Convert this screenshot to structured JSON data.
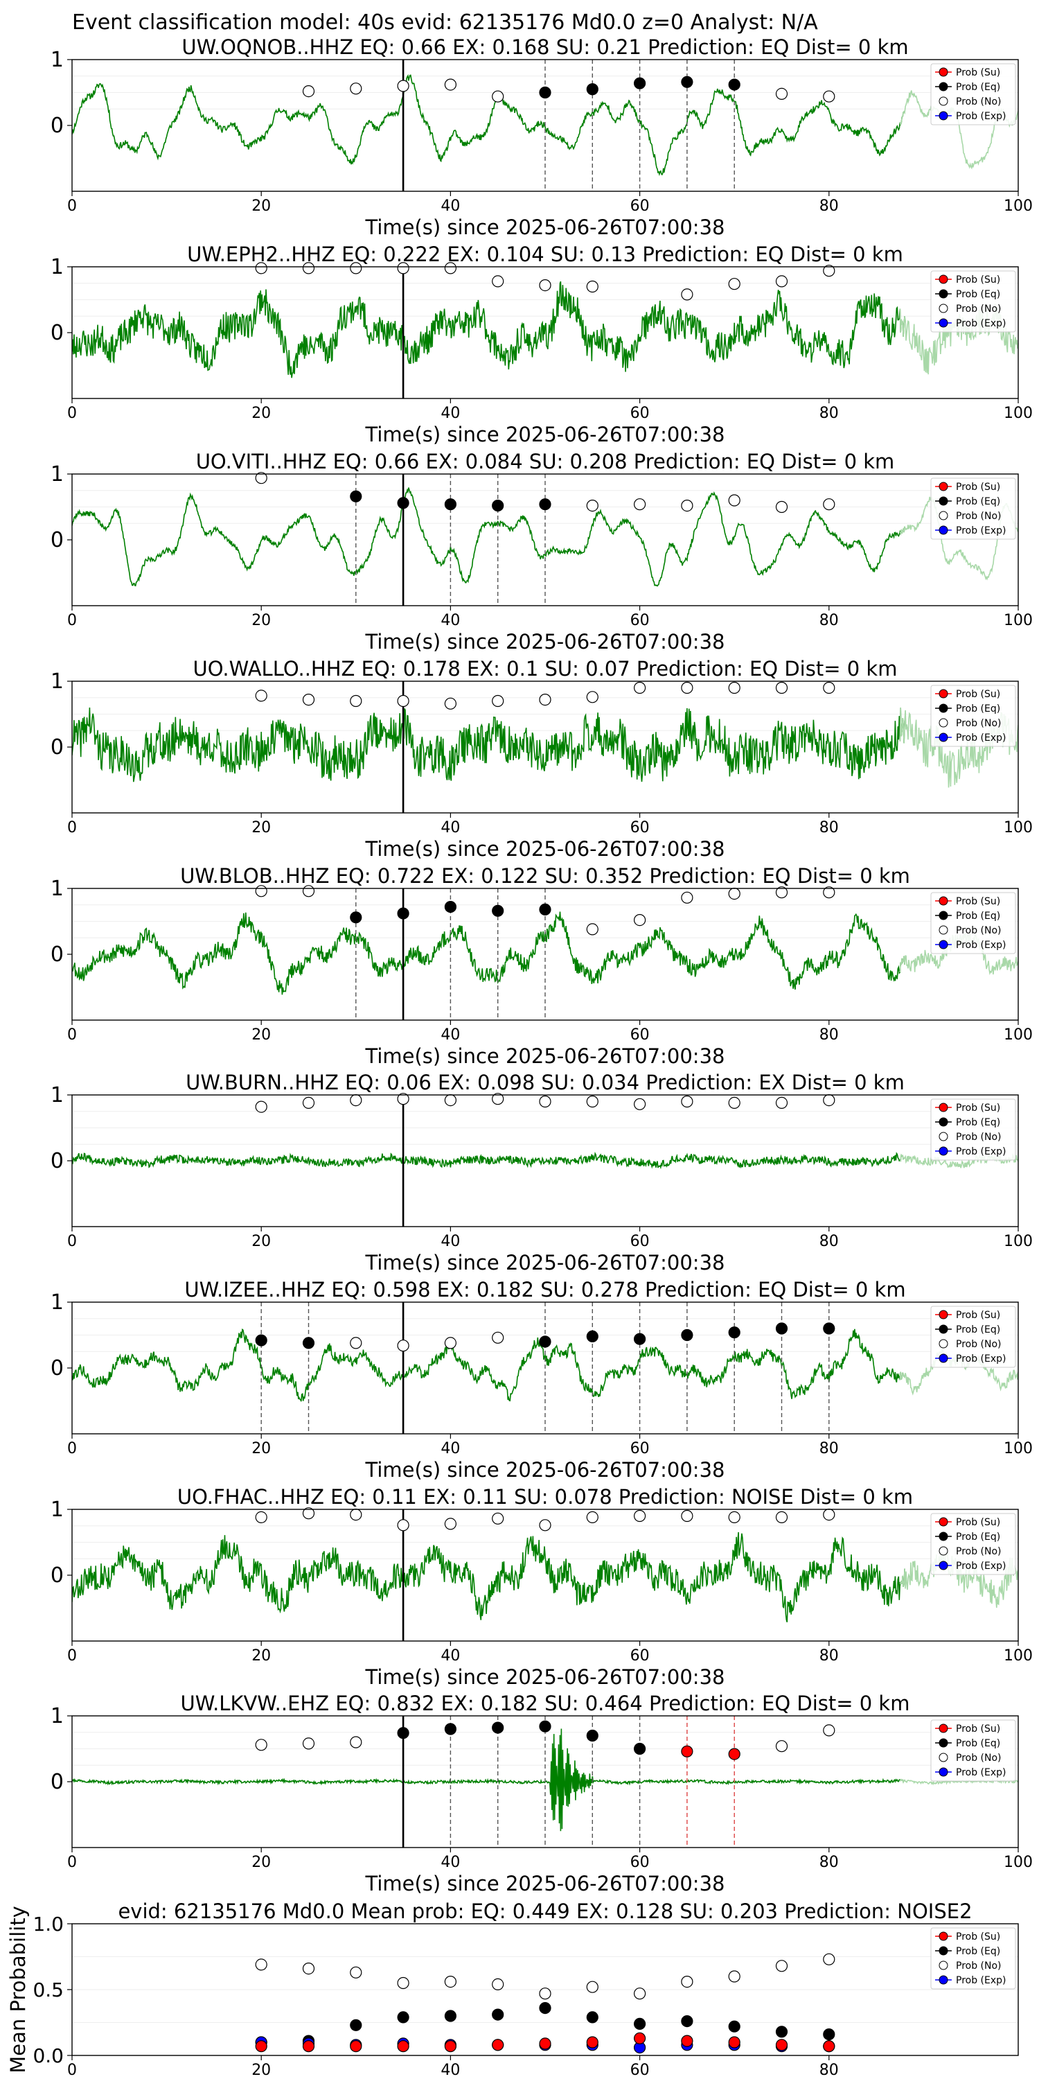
{
  "figure_title": "Event classification model: 40s evid: 62135176 Md0.0 z=0 Analyst: N/A",
  "colors": {
    "trace": "#008000",
    "trace_faded": "#a8d8a8",
    "su": "#ff0000",
    "eq": "#000000",
    "no": "#ffffff",
    "exp": "#0000ff",
    "pick_black": "#555555",
    "pick_red": "#dd4444"
  },
  "legend_labels": [
    "Prob (Su)",
    "Prob (Eq)",
    "Prob (No)",
    "Prob (Exp)"
  ],
  "chart_data": [
    {
      "type": "line",
      "title": "UW.OQNOB..HHZ   EQ: 0.66  EX: 0.168  SU: 0.21   Prediction: EQ    Dist= 0 km",
      "xlabel": "Time(s) since 2025-06-26T07:00:38",
      "xlim": [
        0,
        100
      ],
      "ylim": [
        -1,
        1
      ],
      "x_ticks": [
        0,
        20,
        40,
        60,
        80,
        100
      ],
      "y_ticks": [
        0,
        1
      ],
      "origin_line": 35,
      "pick_lines": [
        50,
        55,
        60,
        65,
        70
      ],
      "pick_color": "black",
      "trace": {
        "amp": 0.55,
        "noise": 0.05,
        "seed": 11,
        "emergent": false
      },
      "prob_no": {
        "x": [
          25,
          30,
          35,
          40,
          45,
          75,
          80
        ],
        "y": [
          0.52,
          0.56,
          0.6,
          0.62,
          0.44,
          0.48,
          0.44
        ]
      },
      "prob_eq": {
        "x": [
          50,
          55,
          60,
          65,
          70
        ],
        "y": [
          0.5,
          0.55,
          0.64,
          0.66,
          0.62
        ]
      },
      "prob_su": {
        "x": [],
        "y": []
      }
    },
    {
      "type": "line",
      "title": "UW.EPH2..HHZ   EQ: 0.222  EX: 0.104  SU: 0.13   Prediction: EQ    Dist= 0 km",
      "xlabel": "Time(s) since 2025-06-26T07:00:38",
      "xlim": [
        0,
        100
      ],
      "ylim": [
        -1,
        1
      ],
      "x_ticks": [
        0,
        20,
        40,
        60,
        80,
        100
      ],
      "y_ticks": [
        0,
        1
      ],
      "origin_line": 35,
      "pick_lines": [],
      "pick_color": "black",
      "trace": {
        "amp": 0.45,
        "noise": 0.22,
        "seed": 23,
        "emergent": false
      },
      "prob_no": {
        "x": [
          20,
          25,
          30,
          35,
          40,
          45,
          50,
          55,
          65,
          70,
          75,
          80
        ],
        "y": [
          0.98,
          0.98,
          0.98,
          0.98,
          0.98,
          0.78,
          0.72,
          0.7,
          0.58,
          0.74,
          0.78,
          0.94
        ]
      },
      "prob_eq": {
        "x": [],
        "y": []
      },
      "prob_su": {
        "x": [],
        "y": []
      }
    },
    {
      "type": "line",
      "title": "UO.VITI..HHZ   EQ: 0.66  EX: 0.084  SU: 0.208   Prediction: EQ    Dist= 0 km",
      "xlabel": "Time(s) since 2025-06-26T07:00:38",
      "xlim": [
        0,
        100
      ],
      "ylim": [
        -1,
        1
      ],
      "x_ticks": [
        0,
        20,
        40,
        60,
        80,
        100
      ],
      "y_ticks": [
        0,
        1
      ],
      "origin_line": 35,
      "pick_lines": [
        30,
        40,
        45,
        50
      ],
      "pick_color": "black",
      "trace": {
        "amp": 0.6,
        "noise": 0.04,
        "seed": 37,
        "emergent": false
      },
      "prob_no": {
        "x": [
          20,
          55,
          60,
          65,
          70,
          75,
          80
        ],
        "y": [
          0.94,
          0.52,
          0.54,
          0.52,
          0.6,
          0.5,
          0.54
        ]
      },
      "prob_eq": {
        "x": [
          30,
          35,
          40,
          45,
          50
        ],
        "y": [
          0.66,
          0.56,
          0.54,
          0.52,
          0.54
        ]
      },
      "prob_su": {
        "x": [],
        "y": []
      }
    },
    {
      "type": "line",
      "title": "UO.WALLO..HHZ   EQ: 0.178  EX: 0.1  SU: 0.07   Prediction: EQ    Dist= 0 km",
      "xlabel": "Time(s) since 2025-06-26T07:00:38",
      "xlim": [
        0,
        100
      ],
      "ylim": [
        -1,
        1
      ],
      "x_ticks": [
        0,
        20,
        40,
        60,
        80,
        100
      ],
      "y_ticks": [
        0,
        1
      ],
      "origin_line": 35,
      "pick_lines": [],
      "pick_color": "black",
      "trace": {
        "amp": 0.3,
        "noise": 0.3,
        "seed": 41,
        "emergent": false
      },
      "prob_no": {
        "x": [
          20,
          25,
          30,
          35,
          40,
          45,
          50,
          55,
          60,
          65,
          70,
          75,
          80
        ],
        "y": [
          0.78,
          0.72,
          0.7,
          0.7,
          0.66,
          0.7,
          0.72,
          0.76,
          0.9,
          0.9,
          0.9,
          0.9,
          0.9
        ]
      },
      "prob_eq": {
        "x": [],
        "y": []
      },
      "prob_su": {
        "x": [],
        "y": []
      }
    },
    {
      "type": "line",
      "title": "UW.BLOB..HHZ   EQ: 0.722  EX: 0.122  SU: 0.352   Prediction: EQ    Dist= 0 km",
      "xlabel": "Time(s) since 2025-06-26T07:00:38",
      "xlim": [
        0,
        100
      ],
      "ylim": [
        -1,
        1
      ],
      "x_ticks": [
        0,
        20,
        40,
        60,
        80,
        100
      ],
      "y_ticks": [
        0,
        1
      ],
      "origin_line": 35,
      "pick_lines": [
        30,
        40,
        45,
        50
      ],
      "pick_color": "black",
      "trace": {
        "amp": 0.45,
        "noise": 0.12,
        "seed": 53,
        "emergent": false
      },
      "prob_no": {
        "x": [
          20,
          25,
          55,
          60,
          65,
          70,
          75,
          80
        ],
        "y": [
          0.96,
          0.96,
          0.38,
          0.52,
          0.86,
          0.92,
          0.94,
          0.94
        ]
      },
      "prob_eq": {
        "x": [
          30,
          35,
          40,
          45,
          50
        ],
        "y": [
          0.56,
          0.62,
          0.72,
          0.66,
          0.68
        ]
      },
      "prob_su": {
        "x": [],
        "y": []
      }
    },
    {
      "type": "line",
      "title": "UW.BURN..HHZ   EQ: 0.06  EX: 0.098  SU: 0.034   Prediction: EX    Dist= 0 km",
      "xlabel": "Time(s) since 2025-06-26T07:00:38",
      "xlim": [
        0,
        100
      ],
      "ylim": [
        -1,
        1
      ],
      "x_ticks": [
        0,
        20,
        40,
        60,
        80,
        100
      ],
      "y_ticks": [
        0,
        1
      ],
      "origin_line": 35,
      "pick_lines": [],
      "pick_color": "black",
      "trace": {
        "amp": 0.05,
        "noise": 0.06,
        "seed": 67,
        "emergent": false
      },
      "prob_no": {
        "x": [
          20,
          25,
          30,
          35,
          40,
          45,
          50,
          55,
          60,
          65,
          70,
          75,
          80
        ],
        "y": [
          0.82,
          0.88,
          0.92,
          0.94,
          0.92,
          0.94,
          0.9,
          0.9,
          0.86,
          0.9,
          0.88,
          0.88,
          0.92
        ]
      },
      "prob_eq": {
        "x": [],
        "y": []
      },
      "prob_su": {
        "x": [],
        "y": []
      }
    },
    {
      "type": "line",
      "title": "UW.IZEE..HHZ   EQ: 0.598  EX: 0.182  SU: 0.278   Prediction: EQ    Dist= 0 km",
      "xlabel": "Time(s) since 2025-06-26T07:00:38",
      "xlim": [
        0,
        100
      ],
      "ylim": [
        -1,
        1
      ],
      "x_ticks": [
        0,
        20,
        40,
        60,
        80,
        100
      ],
      "y_ticks": [
        0,
        1
      ],
      "origin_line": 35,
      "pick_lines": [
        20,
        25,
        50,
        55,
        60,
        65,
        70,
        75,
        80
      ],
      "pick_color": "black",
      "trace": {
        "amp": 0.4,
        "noise": 0.08,
        "seed": 79,
        "emergent": false
      },
      "prob_no": {
        "x": [
          30,
          35,
          40,
          45
        ],
        "y": [
          0.38,
          0.34,
          0.38,
          0.46
        ]
      },
      "prob_eq": {
        "x": [
          20,
          25,
          50,
          55,
          60,
          65,
          70,
          75,
          80
        ],
        "y": [
          0.42,
          0.38,
          0.4,
          0.48,
          0.44,
          0.5,
          0.54,
          0.6,
          0.6
        ]
      },
      "prob_su": {
        "x": [],
        "y": []
      }
    },
    {
      "type": "line",
      "title": "UO.FHAC..HHZ   EQ: 0.11  EX: 0.11  SU: 0.078   Prediction: NOISE    Dist= 0 km",
      "xlabel": "Time(s) since 2025-06-26T07:00:38",
      "xlim": [
        0,
        100
      ],
      "ylim": [
        -1,
        1
      ],
      "x_ticks": [
        0,
        20,
        40,
        60,
        80,
        100
      ],
      "y_ticks": [
        0,
        1
      ],
      "origin_line": 35,
      "pick_lines": [],
      "pick_color": "black",
      "trace": {
        "amp": 0.4,
        "noise": 0.2,
        "seed": 83,
        "emergent": false
      },
      "prob_no": {
        "x": [
          20,
          25,
          30,
          35,
          40,
          45,
          50,
          55,
          60,
          65,
          70,
          75,
          80
        ],
        "y": [
          0.88,
          0.94,
          0.92,
          0.76,
          0.78,
          0.86,
          0.76,
          0.88,
          0.9,
          0.9,
          0.88,
          0.88,
          0.92
        ]
      },
      "prob_eq": {
        "x": [],
        "y": []
      },
      "prob_su": {
        "x": [],
        "y": []
      }
    },
    {
      "type": "line",
      "title": "UW.LKVW..EHZ   EQ: 0.832  EX: 0.182  SU: 0.464   Prediction: EQ    Dist= 0 km",
      "xlabel": "Time(s) since 2025-06-26T07:00:38",
      "xlim": [
        0,
        100
      ],
      "ylim": [
        -1,
        1
      ],
      "x_ticks": [
        0,
        20,
        40,
        60,
        80,
        100
      ],
      "y_ticks": [
        0,
        1
      ],
      "origin_line": 35,
      "pick_lines": [
        40,
        45,
        50,
        55,
        60
      ],
      "pick_color": "black",
      "pick_lines_red": [
        65,
        70
      ],
      "trace": {
        "amp": 0.015,
        "noise": 0.02,
        "seed": 97,
        "emergent": true,
        "burst_start": 50.5,
        "burst_end": 55
      },
      "prob_no": {
        "x": [
          20,
          25,
          30,
          75,
          80
        ],
        "y": [
          0.56,
          0.58,
          0.6,
          0.54,
          0.78
        ]
      },
      "prob_eq": {
        "x": [
          35,
          40,
          45,
          50,
          55,
          60
        ],
        "y": [
          0.74,
          0.8,
          0.82,
          0.84,
          0.7,
          0.5
        ]
      },
      "prob_su": {
        "x": [
          65,
          70
        ],
        "y": [
          0.46,
          0.42
        ]
      }
    },
    {
      "type": "scatter",
      "title": "evid: 62135176  Md0.0   Mean prob:    EQ: 0.449  EX: 0.128  SU: 0.203   Prediction: NOISE2",
      "ylabel": "Mean Probability",
      "xlim": [
        0,
        100
      ],
      "ylim": [
        0,
        1
      ],
      "x_ticks": [
        0,
        20,
        40,
        60,
        80
      ],
      "y_ticks": [
        0.0,
        0.5,
        1.0
      ],
      "y_tick_labels": [
        "0.0",
        "0.5",
        "1.0"
      ],
      "x": [
        20,
        25,
        30,
        35,
        40,
        45,
        50,
        55,
        60,
        65,
        70,
        75,
        80
      ],
      "prob_no": [
        0.69,
        0.66,
        0.63,
        0.55,
        0.56,
        0.54,
        0.47,
        0.52,
        0.47,
        0.56,
        0.6,
        0.68,
        0.73
      ],
      "prob_eq": [
        0.1,
        0.11,
        0.23,
        0.29,
        0.3,
        0.31,
        0.36,
        0.29,
        0.24,
        0.26,
        0.22,
        0.18,
        0.16
      ],
      "prob_su": [
        0.07,
        0.07,
        0.07,
        0.07,
        0.07,
        0.08,
        0.09,
        0.1,
        0.13,
        0.11,
        0.1,
        0.08,
        0.07
      ],
      "prob_exp": [
        0.1,
        0.09,
        0.08,
        0.09,
        0.08,
        0.08,
        0.08,
        0.08,
        0.06,
        0.08,
        0.08,
        0.07,
        0.07
      ]
    }
  ]
}
